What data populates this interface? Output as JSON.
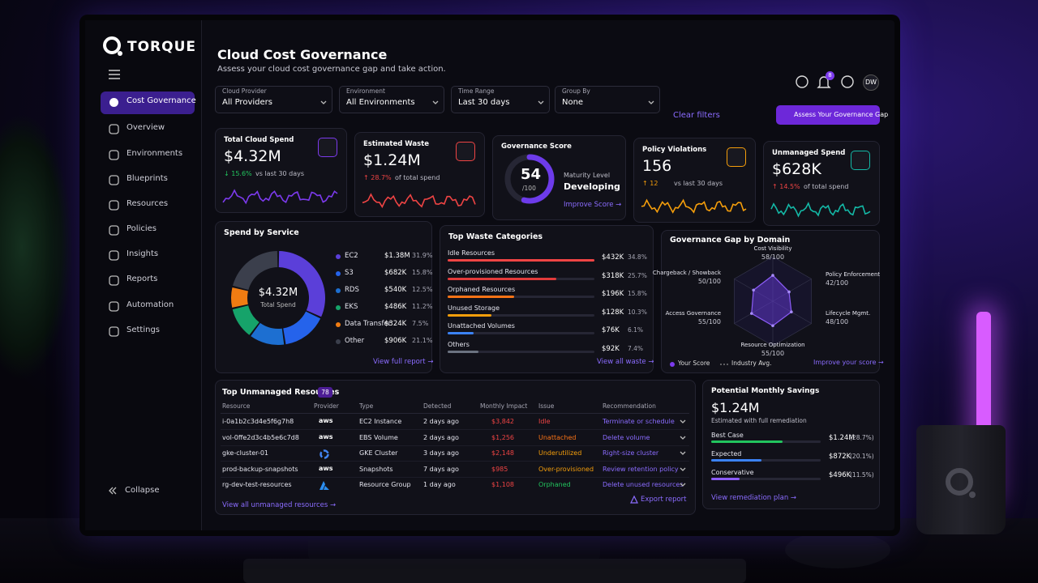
{
  "brand": "TORQUE",
  "nav": {
    "items": [
      "Cost Governance",
      "Overview",
      "Environments",
      "Blueprints",
      "Resources",
      "Policies",
      "Insights",
      "Reports",
      "Automation",
      "Settings"
    ],
    "collapse": "Collapse"
  },
  "header": {
    "title": "Cloud Cost Governance",
    "subtitle": "Assess your cloud cost governance gap and take action.",
    "notifications": 8,
    "avatar": "DW"
  },
  "filters": [
    {
      "label": "Cloud Provider",
      "value": "All Providers"
    },
    {
      "label": "Environment",
      "value": "All Environments"
    },
    {
      "label": "Time Range",
      "value": "Last 30 days"
    },
    {
      "label": "Group By",
      "value": "None"
    }
  ],
  "clear_filters": "Clear filters",
  "cta": "Assess Your Governance Gap",
  "kpis": [
    {
      "title": "Total Cloud Spend",
      "value": "$4.32M",
      "delta": "↓ 15.6%",
      "note": "vs last 30 days",
      "color": "#7c3aed",
      "delta_color": "#22c55e"
    },
    {
      "title": "Estimated Waste",
      "value": "$1.24M",
      "delta": "↑ 28.7%",
      "note": "of total spend",
      "color": "#ef4444",
      "delta_color": "#ef4444"
    },
    {
      "title": "Policy Violations",
      "value": "156",
      "delta": "↑ 12",
      "note": "vs last 30 days",
      "color": "#f59e0b",
      "delta_color": "#f59e0b"
    },
    {
      "title": "Unmanaged Spend",
      "value": "$628K",
      "delta": "↑ 14.5%",
      "note": "of total spend",
      "color": "#14b8a6",
      "delta_color": "#ef4444"
    }
  ],
  "governance_score": {
    "title": "Governance Score",
    "score": 54,
    "score_range": [
      0,
      100
    ],
    "max_label": "/100",
    "maturity_label": "Maturity Level",
    "maturity": "Developing",
    "link": "Improve Score →"
  },
  "spend_by_service": {
    "title": "Spend by Service",
    "total": "$4.32M",
    "total_label": "Total Spend",
    "link": "View full report →",
    "services": [
      {
        "name": "EC2",
        "amount": "$1.38M",
        "share": 31.9,
        "share_label": "31.9%",
        "color": "#5b3fd9"
      },
      {
        "name": "S3",
        "amount": "$682K",
        "share": 15.8,
        "share_label": "15.8%",
        "color": "#2563eb"
      },
      {
        "name": "RDS",
        "amount": "$540K",
        "share": 12.5,
        "share_label": "12.5%",
        "color": "#1d6fd1"
      },
      {
        "name": "EKS",
        "amount": "$486K",
        "share": 11.2,
        "share_label": "11.2%",
        "color": "#16a36a"
      },
      {
        "name": "Data Transfer",
        "amount": "$324K",
        "share": 7.5,
        "share_label": "7.5%",
        "color": "#f07c12"
      },
      {
        "name": "Other",
        "amount": "$906K",
        "share": 21.1,
        "share_label": "21.1%",
        "color": "#3b3f4c"
      }
    ]
  },
  "waste": {
    "title": "Top Waste Categories",
    "link": "View all waste →",
    "items": [
      {
        "name": "Idle Resources",
        "amount": "$432K",
        "share": 34.8,
        "share_label": "34.8%",
        "color": "#ef4444"
      },
      {
        "name": "Over-provisioned Resources",
        "amount": "$318K",
        "share": 25.7,
        "share_label": "25.7%",
        "color": "#e23b3b"
      },
      {
        "name": "Orphaned Resources",
        "amount": "$196K",
        "share": 15.8,
        "share_label": "15.8%",
        "color": "#f97316"
      },
      {
        "name": "Unused Storage",
        "amount": "$128K",
        "share": 10.3,
        "share_label": "10.3%",
        "color": "#f59e0b"
      },
      {
        "name": "Unattached Volumes",
        "amount": "$76K",
        "share": 6.1,
        "share_label": "6.1%",
        "color": "#3b82f6"
      },
      {
        "name": "Others",
        "amount": "$92K",
        "share": 7.4,
        "share_label": "7.4%",
        "color": "#6b7280"
      }
    ]
  },
  "governance_gap": {
    "title": "Governance Gap by Domain",
    "range": [
      0,
      100
    ],
    "legend": [
      "Your Score",
      "Industry Avg."
    ],
    "link": "Improve your score →",
    "domains": [
      {
        "name": "Cost Visibility",
        "score": 58,
        "label": "58/100"
      },
      {
        "name": "Policy Enforcement",
        "score": 42,
        "label": "42/100"
      },
      {
        "name": "Lifecycle Mgmt.",
        "score": 48,
        "label": "48/100"
      },
      {
        "name": "Resource Optimization",
        "score": 55,
        "label": "55/100"
      },
      {
        "name": "Access Governance",
        "score": 55,
        "label": "55/100"
      },
      {
        "name": "Chargeback / Showback",
        "score": 50,
        "label": "50/100"
      }
    ]
  },
  "unmanaged": {
    "title": "Top Unmanaged Resources",
    "count": 78,
    "columns": [
      "Resource",
      "Provider",
      "Type",
      "Detected",
      "Monthly Impact",
      "Issue",
      "Recommendation"
    ],
    "rows": [
      {
        "resource": "i-0a1b2c3d4e5f6g7h8",
        "provider": "aws",
        "type": "EC2 Instance",
        "detected": "2 days ago",
        "impact": "$3,842",
        "issue": "Idle",
        "issue_color": "#ef4444",
        "recommendation": "Terminate or schedule"
      },
      {
        "resource": "vol-0ffe2d3c4b5e6c7d8",
        "provider": "aws",
        "type": "EBS Volume",
        "detected": "2 days ago",
        "impact": "$1,256",
        "issue": "Unattached",
        "issue_color": "#f97316",
        "recommendation": "Delete volume"
      },
      {
        "resource": "gke-cluster-01",
        "provider": "gcp",
        "type": "GKE Cluster",
        "detected": "3 days ago",
        "impact": "$2,148",
        "issue": "Underutilized",
        "issue_color": "#f59e0b",
        "recommendation": "Right-size cluster"
      },
      {
        "resource": "prod-backup-snapshots",
        "provider": "aws",
        "type": "Snapshots",
        "detected": "7 days ago",
        "impact": "$985",
        "issue": "Over-provisioned",
        "issue_color": "#f59e0b",
        "recommendation": "Review retention policy"
      },
      {
        "resource": "rg-dev-test-resources",
        "provider": "azure",
        "type": "Resource Group",
        "detected": "1 day ago",
        "impact": "$1,108",
        "issue": "Orphaned",
        "issue_color": "#22c55e",
        "recommendation": "Delete unused resources"
      }
    ],
    "link": "View all unmanaged resources →",
    "export": "Export report"
  },
  "savings": {
    "title": "Potential Monthly Savings",
    "value": "$1.24M",
    "note": "Estimated with full remediation",
    "link": "View remediation plan →",
    "scenarios": [
      {
        "name": "Best Case",
        "amount": "$1.24M",
        "share": 28.7,
        "share_label": "(28.7%)",
        "color": "#22c55e"
      },
      {
        "name": "Expected",
        "amount": "$872K",
        "share": 20.1,
        "share_label": "(20.1%)",
        "color": "#3b82f6"
      },
      {
        "name": "Conservative",
        "amount": "$496K",
        "share": 11.5,
        "share_label": "(11.5%)",
        "color": "#8b5cf6"
      }
    ]
  }
}
